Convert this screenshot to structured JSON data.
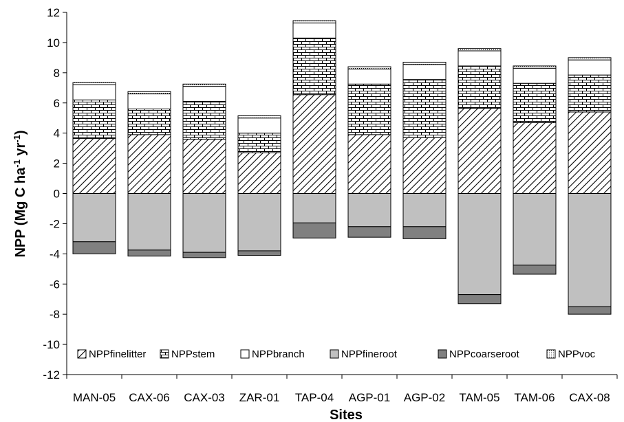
{
  "chart_data": {
    "type": "bar",
    "stacked": true,
    "xlabel": "Sites",
    "ylabel": "NPP (Mg C ha",
    "ylabel_sup1": "-1",
    "ylabel_mid": " yr",
    "ylabel_sup2": "-1",
    "ylabel_end": ")",
    "ylim": [
      -12,
      12
    ],
    "yticks": [
      -12,
      -10,
      -8,
      -6,
      -4,
      -2,
      0,
      2,
      4,
      6,
      8,
      10,
      12
    ],
    "grid": false,
    "legend_position": "bottom-inside",
    "categories": [
      "MAN-05",
      "CAX-06",
      "CAX-03",
      "ZAR-01",
      "TAP-04",
      "AGP-01",
      "AGP-02",
      "TAM-05",
      "TAM-06",
      "CAX-08"
    ],
    "series": [
      {
        "name": "NPPfinelitter",
        "values": [
          3.65,
          3.9,
          3.6,
          2.7,
          6.55,
          3.9,
          3.7,
          5.65,
          4.7,
          5.4
        ],
        "pattern": "diagonal"
      },
      {
        "name": "NPPstem",
        "values": [
          2.55,
          1.7,
          2.5,
          1.3,
          3.75,
          3.35,
          3.85,
          2.8,
          2.6,
          2.45
        ],
        "pattern": "brick"
      },
      {
        "name": "NPPbranch",
        "values": [
          1.0,
          1.0,
          1.0,
          1.0,
          1.0,
          1.0,
          1.0,
          1.0,
          1.0,
          1.0
        ],
        "pattern": "white"
      },
      {
        "name": "NPPfineroot",
        "values": [
          -3.2,
          -3.75,
          -3.9,
          -3.8,
          -1.95,
          -2.2,
          -2.2,
          -6.7,
          -4.75,
          -7.5
        ],
        "pattern": "lightgray"
      },
      {
        "name": "NPPcoarseroot",
        "values": [
          -0.8,
          -0.4,
          -0.35,
          -0.3,
          -1.0,
          -0.7,
          -0.8,
          -0.6,
          -0.6,
          -0.5
        ],
        "pattern": "darkgray"
      },
      {
        "name": "NPPvoc",
        "values": [
          0.15,
          0.15,
          0.15,
          0.15,
          0.15,
          0.15,
          0.15,
          0.15,
          0.15,
          0.15
        ],
        "pattern": "dots"
      }
    ],
    "colors": {
      "lightgray": "#c0c0c0",
      "darkgray": "#808080",
      "stroke": "#000000"
    }
  }
}
